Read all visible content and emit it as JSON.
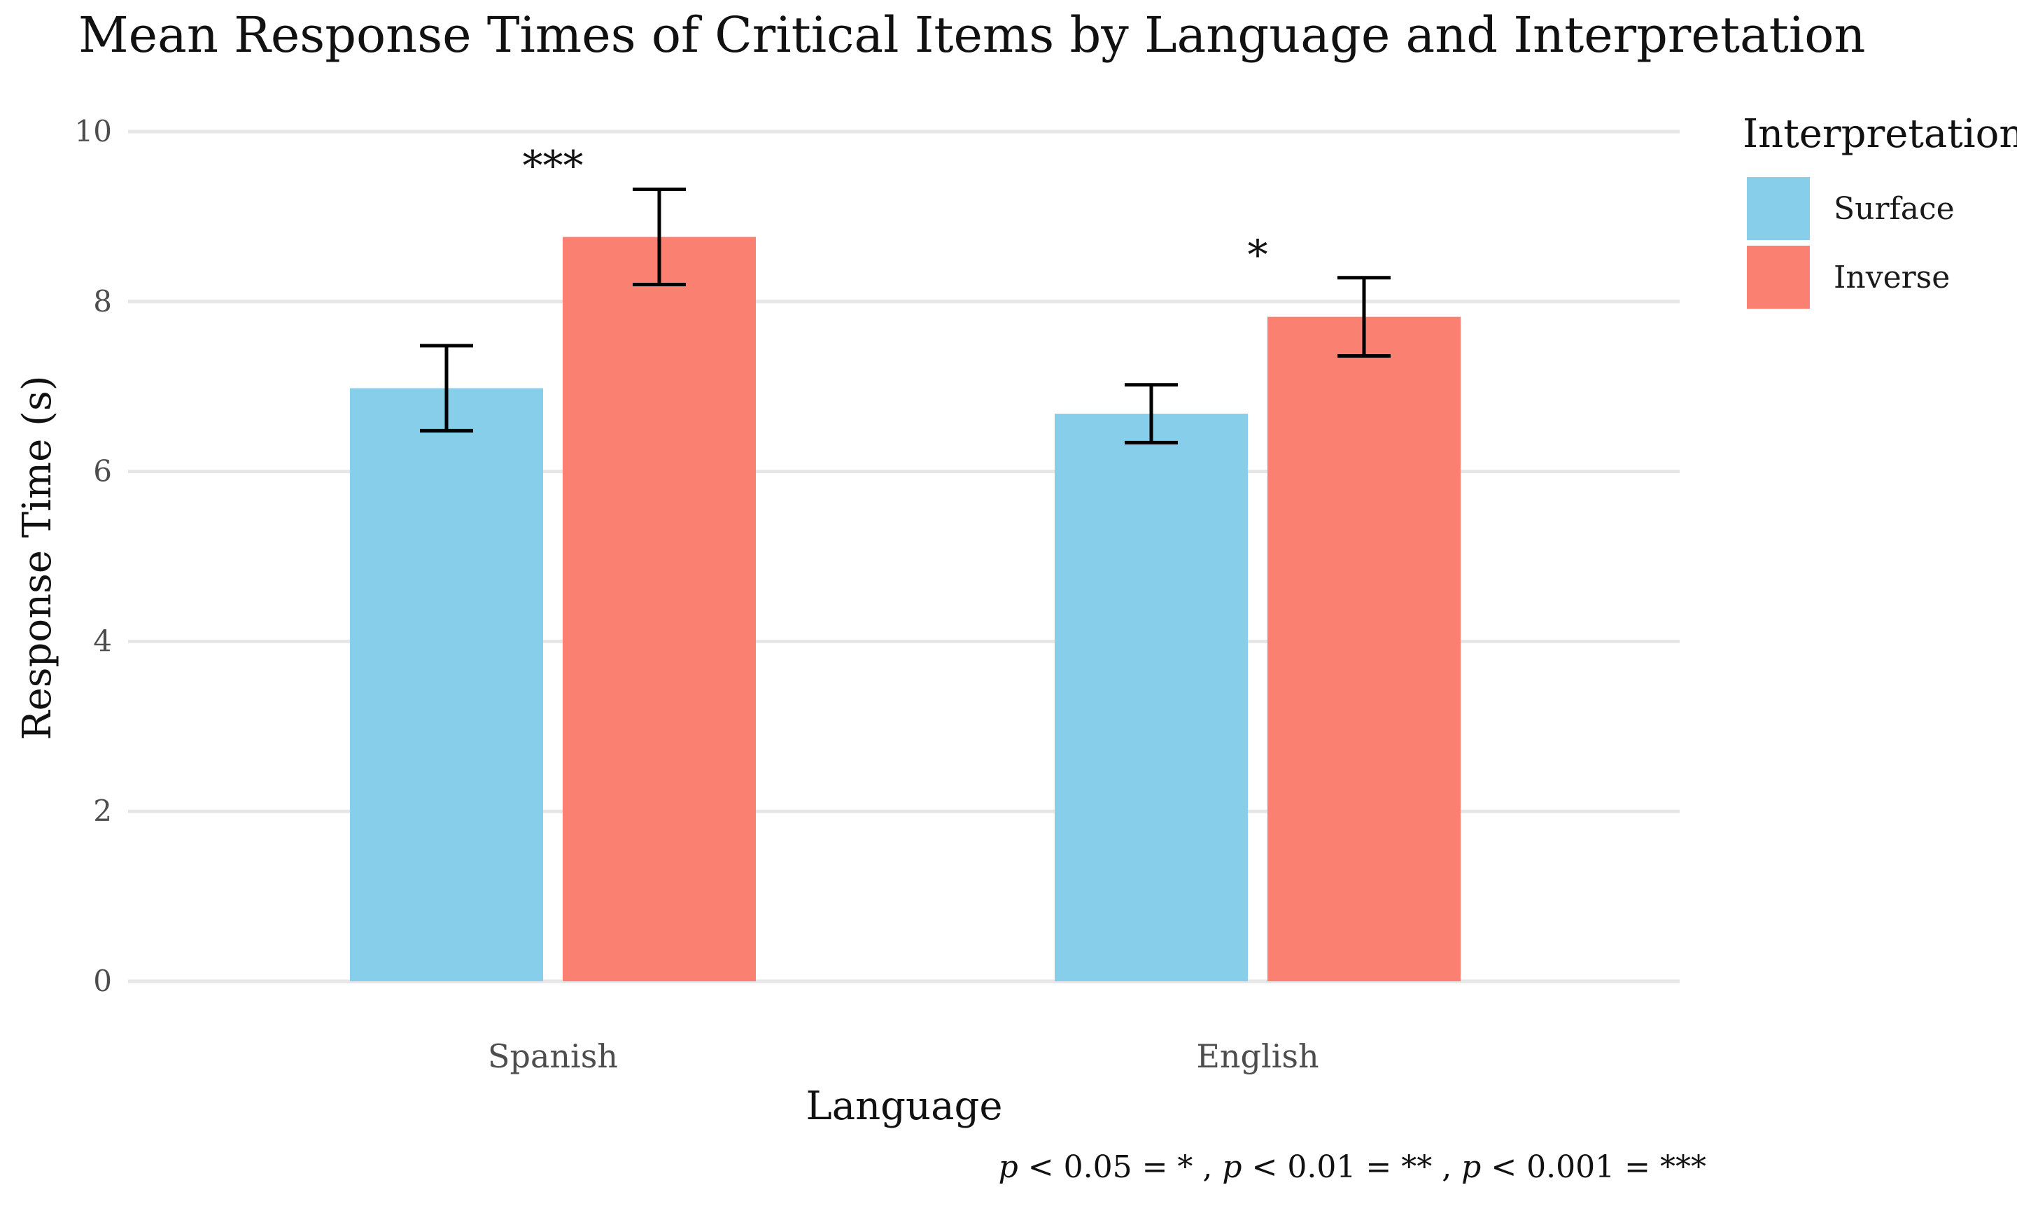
{
  "chart_data": {
    "type": "bar",
    "title": "Mean Response Times of Critical Items by Language and Interpretation",
    "xlabel": "Language",
    "ylabel": "Response Time (s)",
    "ylim": [
      0,
      10
    ],
    "yticks": [
      0,
      2,
      4,
      6,
      8,
      10
    ],
    "grid": true,
    "categories": [
      "Spanish",
      "English"
    ],
    "series": [
      {
        "name": "Surface",
        "color": "#87CEEB",
        "values": [
          6.98,
          6.68
        ],
        "error_low": [
          6.48,
          6.34
        ],
        "error_high": [
          7.48,
          7.02
        ]
      },
      {
        "name": "Inverse",
        "color": "#FA8072",
        "values": [
          8.76,
          7.82
        ],
        "error_low": [
          8.2,
          7.36
        ],
        "error_high": [
          9.32,
          8.28
        ]
      }
    ],
    "significance": [
      {
        "category": "Spanish",
        "label": "***",
        "y": 9.75
      },
      {
        "category": "English",
        "label": "*",
        "y": 8.7
      }
    ],
    "legend": {
      "title": "Interpretation",
      "position": "right"
    },
    "footnote": [
      {
        "p": "p",
        "text": " < 0.05 = * , "
      },
      {
        "p": "p",
        "text": " < 0.01 = ** , "
      },
      {
        "p": "p",
        "text": " < 0.001 = ***"
      }
    ]
  }
}
